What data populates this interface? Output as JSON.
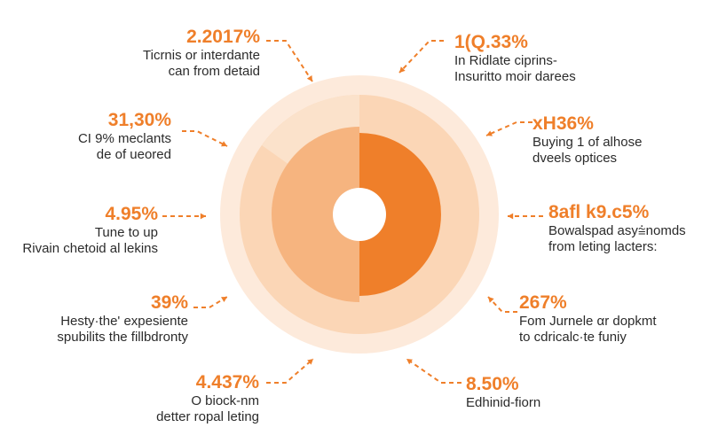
{
  "colors": {
    "accent": "#ef7f2a",
    "accent_dark": "#f07a22",
    "ring_outer": "#fdeadb",
    "ring_mid": "#fbd6b6",
    "wedge_light": "#f6b47f",
    "wedge_pale": "#fbe2cb",
    "text": "#2b2b2b",
    "center": "#ffffff"
  },
  "chart_data": {
    "type": "pie",
    "title": "",
    "slices": [
      {
        "label": "2.2017%",
        "description": [
          "Ticrnis or interdante",
          "can from detaid"
        ]
      },
      {
        "label": "31,30%",
        "description": [
          "CI 9% meclants",
          "de of ueored"
        ]
      },
      {
        "label": "4.95%",
        "description": [
          "Tune to up",
          "Rivain chetoid al lekins"
        ]
      },
      {
        "label": "39%",
        "description": [
          "Hesty·the' expesiente",
          "spubilits the fillbdronty"
        ]
      },
      {
        "label": "4.437%",
        "description": [
          "O biock-nm",
          "detter ropal leting"
        ]
      },
      {
        "label": "1(Q.33%",
        "description": [
          "In Ridlate ciprins-",
          "Insuritto moir darees"
        ]
      },
      {
        "label": "хН36%",
        "description": [
          "Buying 1 of alhose",
          "dveels optices"
        ]
      },
      {
        "label": "8afl k9.c5%",
        "description": [
          "Bowalspad asy⩭nomds",
          "from leting lacters:"
        ]
      },
      {
        "label": "267%",
        "description": [
          "Fom Jurnele αr dopkmt",
          "to cdricalc·te funiy"
        ]
      },
      {
        "label": "8.50%",
        "description": [
          "Edhinid-fiorn"
        ]
      }
    ]
  }
}
